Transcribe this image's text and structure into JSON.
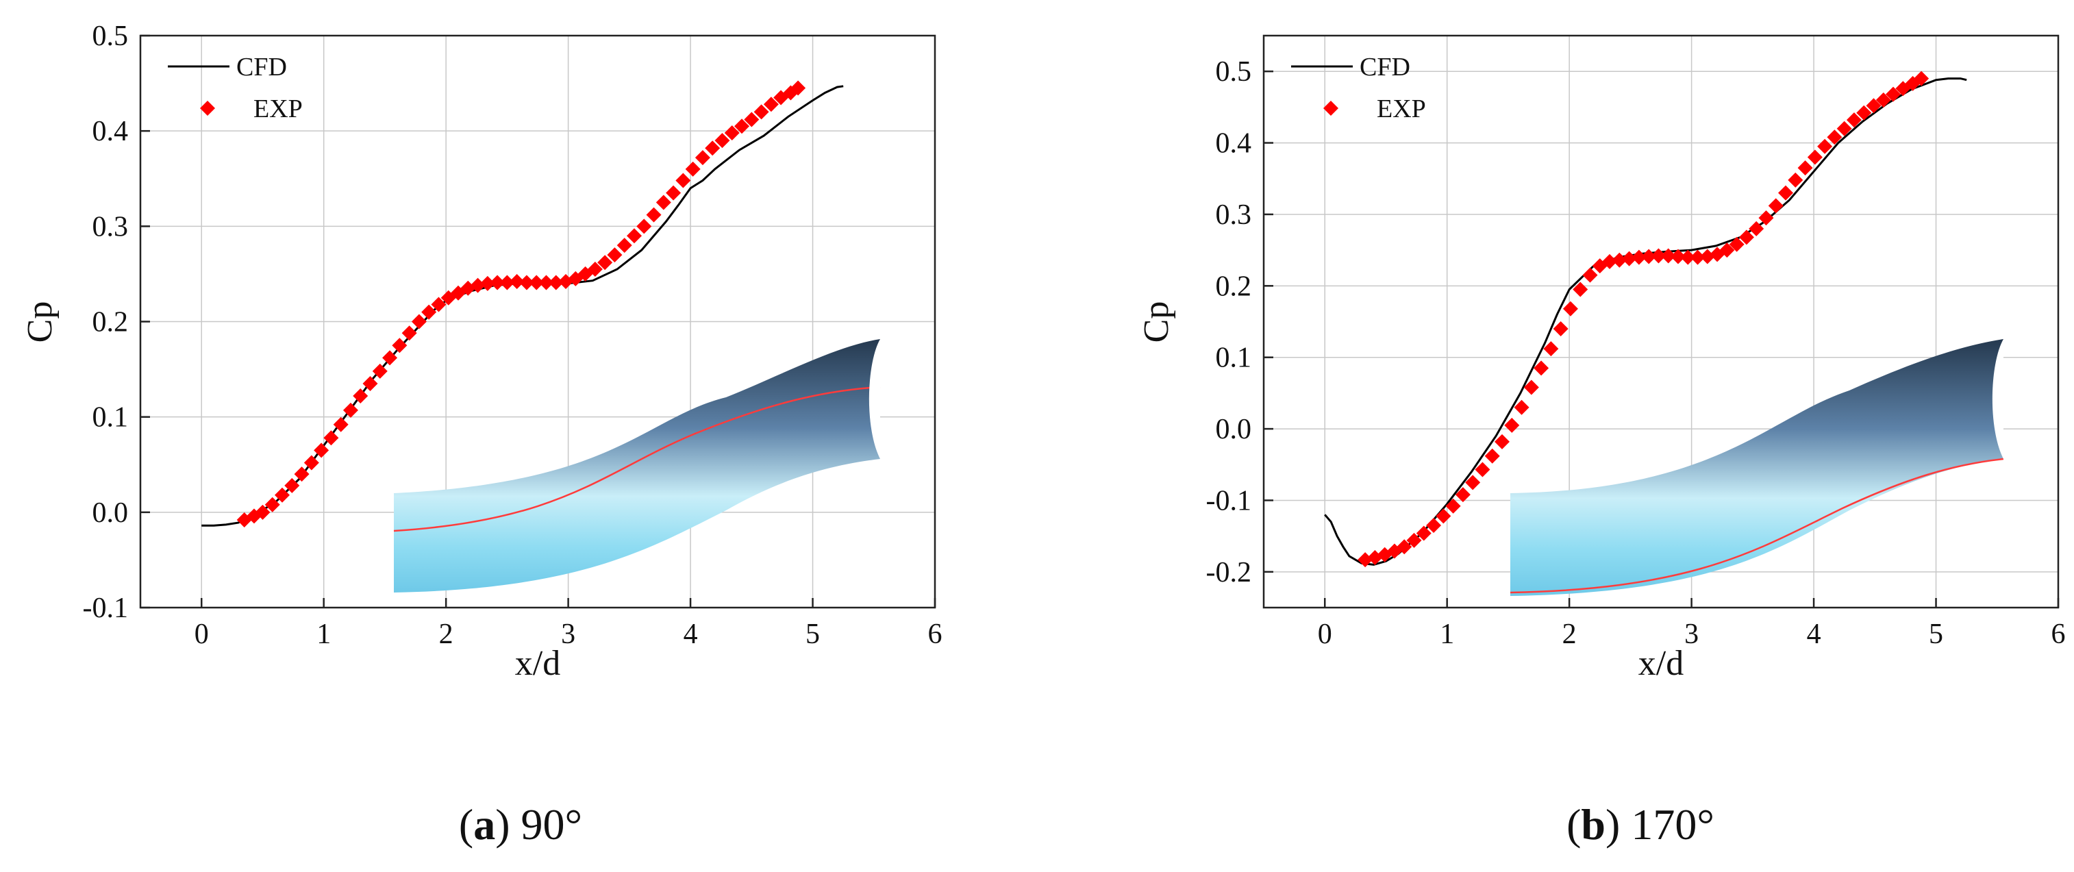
{
  "chart_data": [
    {
      "type": "line",
      "panel_letter": "a",
      "panel_angle": "90°",
      "xlabel": "x/d",
      "ylabel": "Cp",
      "xlim": [
        -0.5,
        6
      ],
      "ylim": [
        -0.1,
        0.5
      ],
      "x_ticks": [
        0,
        1,
        2,
        3,
        4,
        5,
        6
      ],
      "y_ticks": [
        -0.1,
        0.0,
        0.1,
        0.2,
        0.3,
        0.4,
        0.5
      ],
      "y_tick_labels": [
        "-0.1",
        "0.0",
        "0.1",
        "0.2",
        "0.3",
        "0.4",
        "0.5"
      ],
      "grid": true,
      "legend_position": "top-left",
      "series": [
        {
          "name": "CFD",
          "style": "line",
          "color": "#000000",
          "x": [
            0.0,
            0.1,
            0.2,
            0.3,
            0.4,
            0.6,
            0.8,
            1.0,
            1.2,
            1.4,
            1.6,
            1.8,
            1.9,
            2.0,
            2.2,
            2.4,
            2.6,
            2.8,
            3.0,
            3.2,
            3.4,
            3.6,
            3.8,
            3.9,
            4.0,
            4.1,
            4.2,
            4.4,
            4.6,
            4.8,
            5.0,
            5.1,
            5.2,
            5.25
          ],
          "y": [
            -0.014,
            -0.014,
            -0.013,
            -0.011,
            -0.005,
            0.01,
            0.035,
            0.07,
            0.105,
            0.14,
            0.17,
            0.198,
            0.212,
            0.222,
            0.232,
            0.238,
            0.24,
            0.24,
            0.24,
            0.243,
            0.255,
            0.275,
            0.305,
            0.322,
            0.34,
            0.348,
            0.36,
            0.38,
            0.395,
            0.415,
            0.432,
            0.44,
            0.446,
            0.447
          ]
        },
        {
          "name": "EXP",
          "style": "diamond",
          "color": "#ff0000",
          "x": [
            0.35,
            0.43,
            0.5,
            0.58,
            0.66,
            0.74,
            0.82,
            0.9,
            0.98,
            1.06,
            1.14,
            1.22,
            1.3,
            1.38,
            1.46,
            1.54,
            1.62,
            1.7,
            1.78,
            1.86,
            1.94,
            2.02,
            2.1,
            2.18,
            2.26,
            2.34,
            2.42,
            2.5,
            2.58,
            2.66,
            2.74,
            2.82,
            2.9,
            2.98,
            3.06,
            3.14,
            3.22,
            3.3,
            3.38,
            3.46,
            3.54,
            3.62,
            3.7,
            3.78,
            3.86,
            3.94,
            4.02,
            4.1,
            4.18,
            4.26,
            4.34,
            4.42,
            4.5,
            4.58,
            4.66,
            4.74,
            4.82,
            4.88
          ],
          "y": [
            -0.008,
            -0.004,
            0.0,
            0.008,
            0.018,
            0.028,
            0.04,
            0.052,
            0.065,
            0.078,
            0.092,
            0.107,
            0.122,
            0.135,
            0.148,
            0.162,
            0.175,
            0.188,
            0.2,
            0.21,
            0.218,
            0.225,
            0.23,
            0.235,
            0.238,
            0.24,
            0.241,
            0.241,
            0.242,
            0.241,
            0.241,
            0.241,
            0.241,
            0.242,
            0.245,
            0.25,
            0.255,
            0.262,
            0.27,
            0.28,
            0.29,
            0.3,
            0.312,
            0.325,
            0.335,
            0.348,
            0.36,
            0.372,
            0.382,
            0.39,
            0.398,
            0.405,
            0.412,
            0.42,
            0.428,
            0.435,
            0.44,
            0.445
          ]
        }
      ]
    },
    {
      "type": "line",
      "panel_letter": "b",
      "panel_angle": "170°",
      "xlabel": "x/d",
      "ylabel": "Cp",
      "xlim": [
        -0.5,
        6
      ],
      "ylim": [
        -0.25,
        0.55
      ],
      "x_ticks": [
        0,
        1,
        2,
        3,
        4,
        5,
        6
      ],
      "y_ticks": [
        -0.2,
        -0.1,
        0.0,
        0.1,
        0.2,
        0.3,
        0.4,
        0.5
      ],
      "y_tick_labels": [
        "-0.2",
        "-0.1",
        "0.0",
        "0.1",
        "0.2",
        "0.3",
        "0.4",
        "0.5"
      ],
      "grid": true,
      "legend_position": "top-left",
      "series": [
        {
          "name": "CFD",
          "style": "line",
          "color": "#000000",
          "x": [
            0.0,
            0.05,
            0.1,
            0.15,
            0.2,
            0.3,
            0.4,
            0.5,
            0.6,
            0.8,
            1.0,
            1.2,
            1.4,
            1.6,
            1.8,
            1.9,
            2.0,
            2.2,
            2.4,
            2.6,
            2.8,
            3.0,
            3.2,
            3.4,
            3.6,
            3.8,
            4.0,
            4.2,
            4.4,
            4.6,
            4.8,
            5.0,
            5.1,
            5.2,
            5.25
          ],
          "y": [
            -0.12,
            -0.13,
            -0.15,
            -0.165,
            -0.178,
            -0.188,
            -0.19,
            -0.185,
            -0.175,
            -0.145,
            -0.105,
            -0.06,
            -0.01,
            0.05,
            0.12,
            0.16,
            0.195,
            0.228,
            0.24,
            0.245,
            0.248,
            0.25,
            0.256,
            0.268,
            0.29,
            0.32,
            0.36,
            0.4,
            0.43,
            0.455,
            0.475,
            0.488,
            0.49,
            0.49,
            0.488
          ]
        },
        {
          "name": "EXP",
          "style": "diamond",
          "color": "#ff0000",
          "x": [
            0.33,
            0.41,
            0.49,
            0.57,
            0.65,
            0.73,
            0.81,
            0.89,
            0.97,
            1.05,
            1.13,
            1.21,
            1.29,
            1.37,
            1.45,
            1.53,
            1.61,
            1.69,
            1.77,
            1.85,
            1.93,
            2.01,
            2.09,
            2.17,
            2.25,
            2.33,
            2.41,
            2.49,
            2.57,
            2.65,
            2.73,
            2.81,
            2.89,
            2.97,
            3.05,
            3.13,
            3.21,
            3.29,
            3.37,
            3.45,
            3.53,
            3.61,
            3.69,
            3.77,
            3.85,
            3.93,
            4.01,
            4.09,
            4.17,
            4.25,
            4.33,
            4.41,
            4.49,
            4.57,
            4.65,
            4.73,
            4.81,
            4.88
          ],
          "y": [
            -0.183,
            -0.18,
            -0.176,
            -0.171,
            -0.165,
            -0.156,
            -0.146,
            -0.135,
            -0.122,
            -0.108,
            -0.092,
            -0.075,
            -0.057,
            -0.038,
            -0.018,
            0.005,
            0.03,
            0.058,
            0.085,
            0.112,
            0.14,
            0.168,
            0.195,
            0.215,
            0.228,
            0.234,
            0.236,
            0.238,
            0.24,
            0.241,
            0.242,
            0.242,
            0.241,
            0.24,
            0.24,
            0.241,
            0.244,
            0.25,
            0.258,
            0.268,
            0.28,
            0.295,
            0.312,
            0.33,
            0.348,
            0.365,
            0.38,
            0.395,
            0.408,
            0.42,
            0.432,
            0.442,
            0.452,
            0.46,
            0.468,
            0.476,
            0.483,
            0.49
          ]
        }
      ]
    }
  ]
}
